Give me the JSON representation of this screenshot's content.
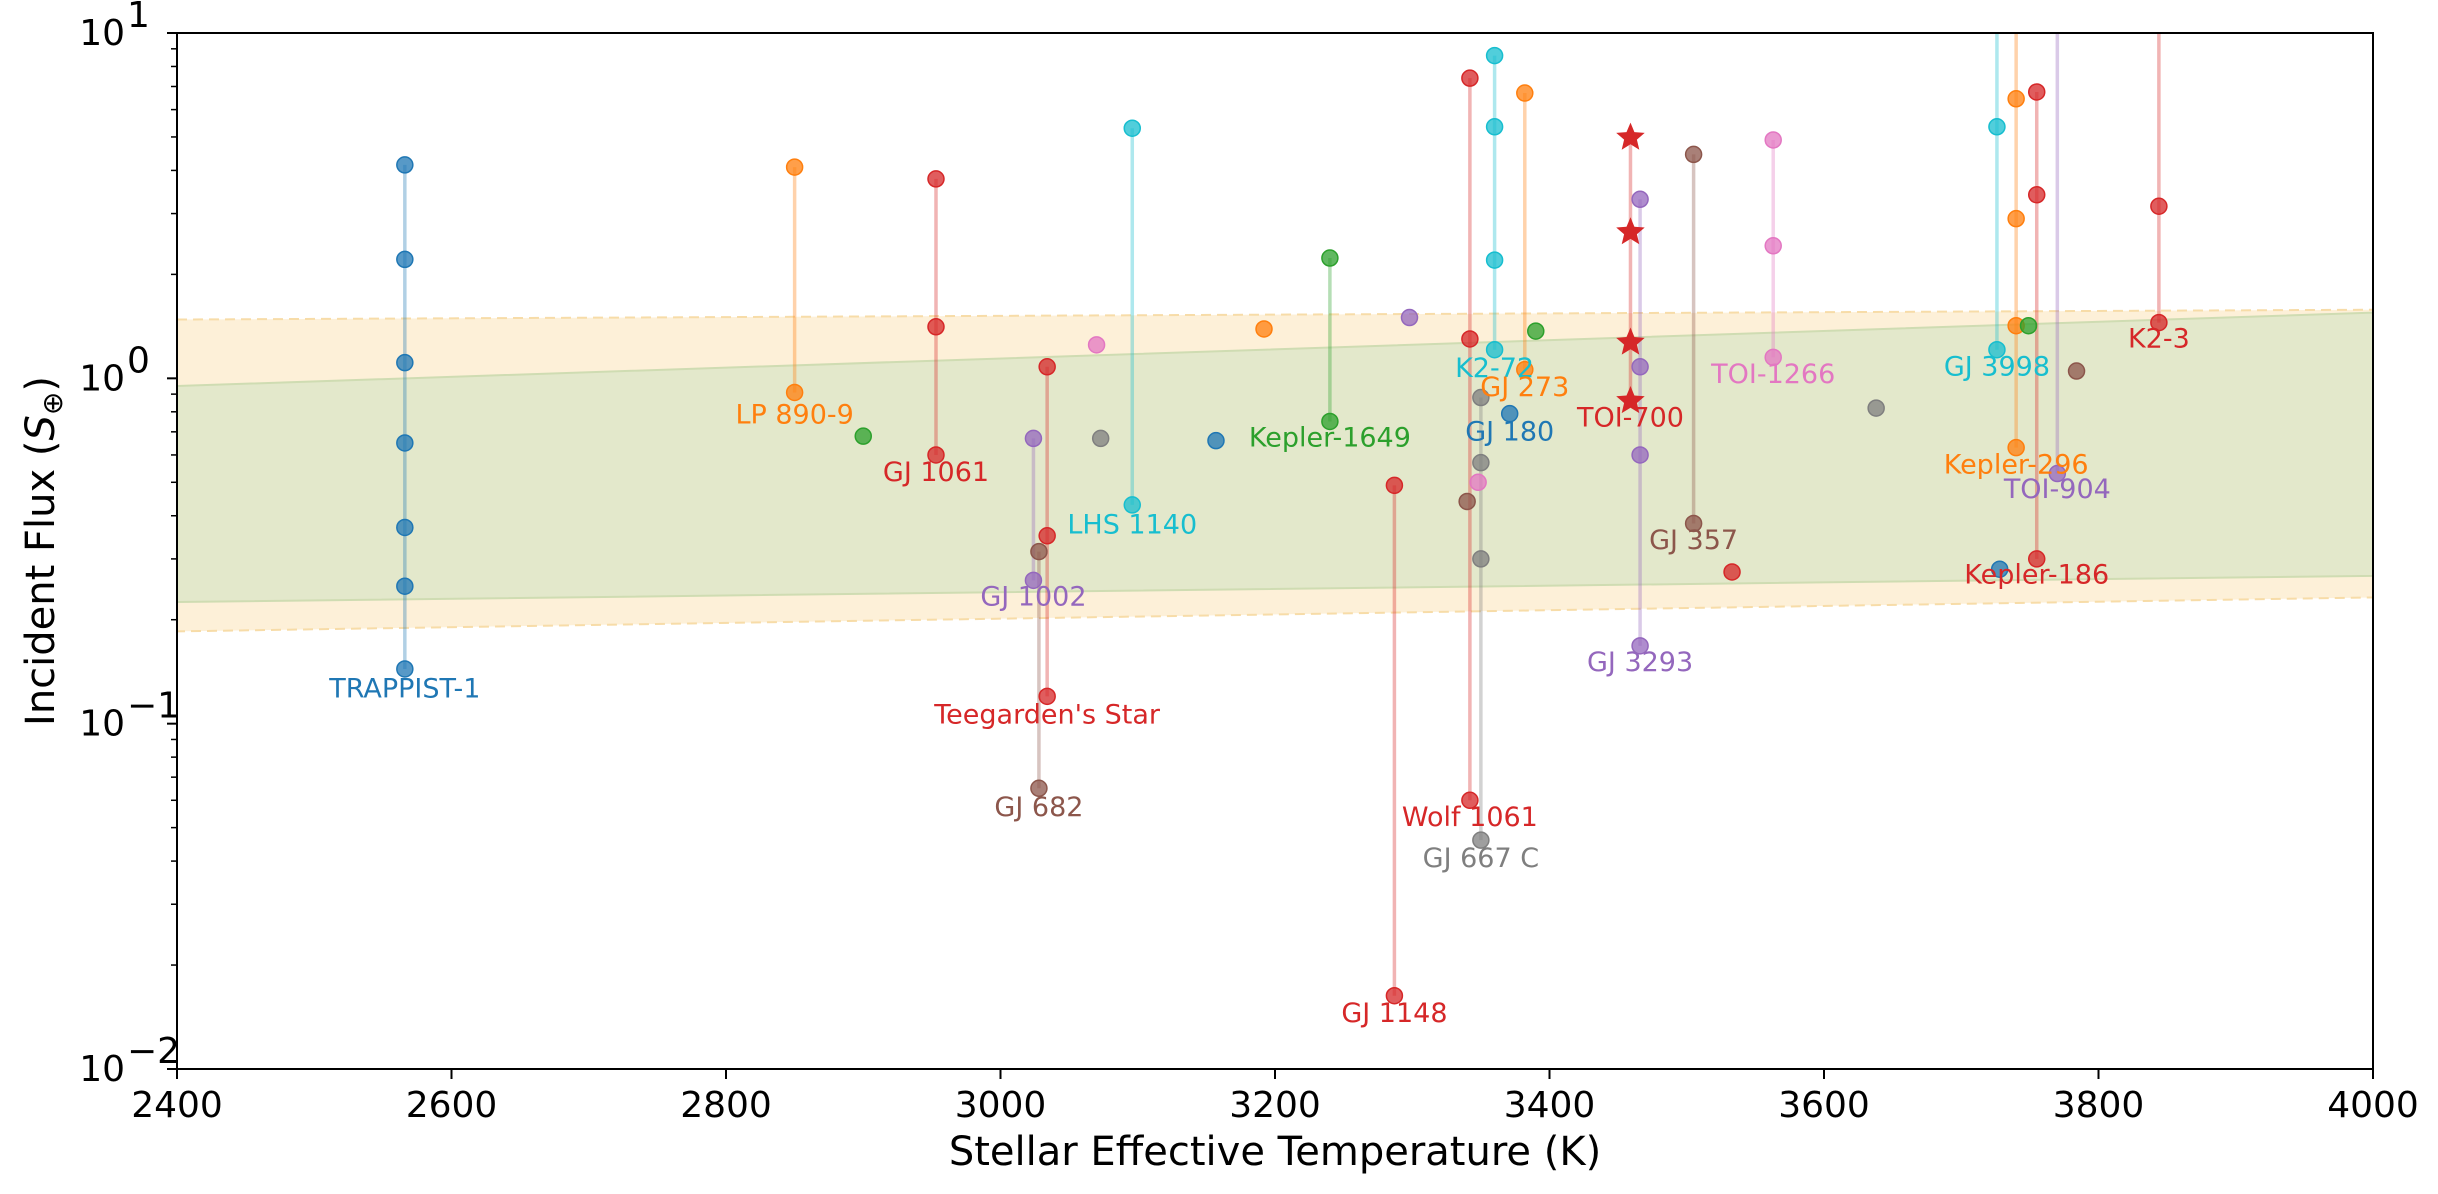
{
  "chart_data": {
    "type": "scatter",
    "title": "",
    "xlabel": "Stellar Effective Temperature (K)",
    "ylabel_prefix": "Incident Flux (",
    "ylabel_symbol": "S",
    "ylabel_subscript": "⊕",
    "ylabel_suffix": ")",
    "x_scale": "linear",
    "y_scale": "log",
    "xlim": [
      2400,
      4000
    ],
    "ylim": [
      0.01,
      10
    ],
    "x_ticks": [
      2400,
      2600,
      2800,
      3000,
      3200,
      3400,
      3600,
      3800,
      4000
    ],
    "y_ticks": [
      {
        "value": 0.01,
        "base": "10",
        "exp": "−2"
      },
      {
        "value": 0.1,
        "base": "10",
        "exp": "−1"
      },
      {
        "value": 1,
        "base": "10",
        "exp": "0"
      },
      {
        "value": 10,
        "base": "10",
        "exp": "1"
      }
    ],
    "habitable_zone_optimistic": {
      "color": "#fdf0d8",
      "border_color": "#f7dca8",
      "x": [
        2400,
        4000
      ],
      "inner": [
        1.48,
        1.58
      ],
      "outer": [
        0.185,
        0.232
      ]
    },
    "habitable_zone_conservative": {
      "color": "#e3e8cb",
      "border_color": "#cfdcb2",
      "x": [
        2400,
        4000
      ],
      "inner": [
        0.95,
        1.55
      ],
      "outer": [
        0.225,
        0.268
      ]
    },
    "systems": [
      {
        "name": "TRAPPIST-1",
        "color": "#1f77b4",
        "teff": 2566,
        "fluxes": [
          4.15,
          2.21,
          1.11,
          0.65,
          0.37,
          0.25,
          0.144
        ],
        "label_flux": 0.119,
        "label_dteff": 0
      },
      {
        "name": "LP 890-9",
        "color": "#ff7f0e",
        "teff": 2850,
        "fluxes": [
          4.09,
          0.91
        ],
        "label_flux": 0.74,
        "label_dteff": 0
      },
      {
        "name": "GJ 1061",
        "color": "#d62728",
        "teff": 2953,
        "fluxes": [
          3.78,
          1.41,
          0.6
        ],
        "label_flux": 0.505,
        "label_dteff": 0
      },
      {
        "name": "LHS 1140",
        "color": "#17becf",
        "teff": 3096,
        "fluxes": [
          5.3,
          0.43
        ],
        "label_flux": 0.355,
        "label_dteff": 0
      },
      {
        "name": "GJ 1002",
        "color": "#9467bd",
        "teff": 3024,
        "fluxes": [
          0.67,
          0.26
        ],
        "label_flux": 0.22,
        "label_dteff": 0
      },
      {
        "name": "Teegarden's Star",
        "color": "#d62728",
        "teff": 3034,
        "fluxes": [
          1.08,
          0.35,
          0.12
        ],
        "label_flux": 0.1,
        "label_dteff": 0
      },
      {
        "name": "GJ 682",
        "color": "#8c564b",
        "teff": 3028,
        "fluxes": [
          0.315,
          0.065
        ],
        "label_flux": 0.054,
        "label_dteff": 0
      },
      {
        "name": "Kepler-1649",
        "color": "#2ca02c",
        "teff": 3240,
        "fluxes": [
          2.23,
          0.75
        ],
        "label_flux": 0.635,
        "label_dteff": 0
      },
      {
        "name": "GJ 1148",
        "color": "#d62728",
        "teff": 3287,
        "fluxes": [
          0.49,
          0.0163
        ],
        "label_flux": 0.0137,
        "label_dteff": 0
      },
      {
        "name": "Wolf 1061",
        "color": "#d62728",
        "teff": 3342,
        "fluxes": [
          7.4,
          1.3,
          0.06
        ],
        "label_flux": 0.0505,
        "label_dteff": 0
      },
      {
        "name": "GJ 667 C",
        "color": "#7f7f7f",
        "teff": 3350,
        "fluxes": [
          0.88,
          0.57,
          0.3,
          0.046
        ],
        "label_flux": 0.0385,
        "label_dteff": 0
      },
      {
        "name": "K2-72",
        "color": "#17becf",
        "teff": 3360,
        "fluxes": [
          8.6,
          5.35,
          2.2,
          1.21
        ],
        "label_flux": 1.01,
        "label_dteff": 0
      },
      {
        "name": "GJ 273",
        "color": "#ff7f0e",
        "teff": 3382,
        "fluxes": [
          6.7,
          1.06
        ],
        "label_flux": 0.89,
        "label_dteff": 0
      },
      {
        "name": "GJ 180",
        "color": "#1f77b4",
        "teff": 3371,
        "fluxes": [
          0.79
        ],
        "label_flux": 0.66,
        "label_dteff": 0
      },
      {
        "name": "TOI-700",
        "color": "#d62728",
        "teff": 3459,
        "fluxes": [
          4.98,
          2.65,
          1.27,
          0.86
        ],
        "label_flux": 0.725,
        "label_dteff": 0,
        "marker": "star"
      },
      {
        "name": "GJ 3293",
        "color": "#9467bd",
        "teff": 3466,
        "fluxes": [
          3.3,
          1.08,
          0.6,
          0.168
        ],
        "label_flux": 0.142,
        "label_dteff": 0
      },
      {
        "name": "GJ 357",
        "color": "#8c564b",
        "teff": 3505,
        "fluxes": [
          4.45,
          0.38
        ],
        "label_flux": 0.32,
        "label_dteff": 0
      },
      {
        "name": "TOI-1266",
        "color": "#e377c2",
        "teff": 3563,
        "fluxes": [
          4.9,
          2.42,
          1.15
        ],
        "label_flux": 0.97,
        "label_dteff": 0
      },
      {
        "name": "GJ 3998",
        "color": "#17becf",
        "teff": 3726,
        "fluxes": [
          5.35,
          1.21
        ],
        "label_flux": 1.02,
        "label_dteff": 0,
        "extends_above": true
      },
      {
        "name": "Kepler-296",
        "color": "#ff7f0e",
        "teff": 3740,
        "fluxes": [
          6.45,
          2.9,
          1.42,
          0.63
        ],
        "label_flux": 0.53,
        "label_dteff": 0,
        "extends_above": true
      },
      {
        "name": "TOI-904",
        "color": "#9467bd",
        "teff": 3770,
        "fluxes": [
          0.53
        ],
        "label_flux": 0.45,
        "label_dteff": 0,
        "extends_above": true
      },
      {
        "name": "Kepler-186",
        "color": "#d62728",
        "teff": 3755,
        "fluxes": [
          6.75,
          3.4,
          0.3
        ],
        "label_flux": 0.255,
        "label_dteff": 0
      },
      {
        "name": "K2-3",
        "color": "#d62728",
        "teff": 3844,
        "fluxes": [
          3.15,
          1.45
        ],
        "label_flux": 1.23,
        "label_dteff": 0,
        "extends_above": true
      }
    ],
    "single_points": [
      {
        "teff": 2900,
        "flux": 0.68,
        "color": "#2ca02c"
      },
      {
        "teff": 3070,
        "flux": 1.25,
        "color": "#e377c2"
      },
      {
        "teff": 3073,
        "flux": 0.67,
        "color": "#7f7f7f"
      },
      {
        "teff": 3157,
        "flux": 0.66,
        "color": "#1f77b4"
      },
      {
        "teff": 3192,
        "flux": 1.39,
        "color": "#ff7f0e"
      },
      {
        "teff": 3298,
        "flux": 1.5,
        "color": "#9467bd"
      },
      {
        "teff": 3340,
        "flux": 0.44,
        "color": "#8c564b"
      },
      {
        "teff": 3348,
        "flux": 0.5,
        "color": "#e377c2"
      },
      {
        "teff": 3390,
        "flux": 1.37,
        "color": "#2ca02c"
      },
      {
        "teff": 3533,
        "flux": 0.275,
        "color": "#d62728"
      },
      {
        "teff": 3638,
        "flux": 0.82,
        "color": "#7f7f7f"
      },
      {
        "teff": 3728,
        "flux": 0.28,
        "color": "#1f77b4"
      },
      {
        "teff": 3749,
        "flux": 1.42,
        "color": "#2ca02c"
      },
      {
        "teff": 3784,
        "flux": 1.05,
        "color": "#8c564b"
      }
    ]
  }
}
